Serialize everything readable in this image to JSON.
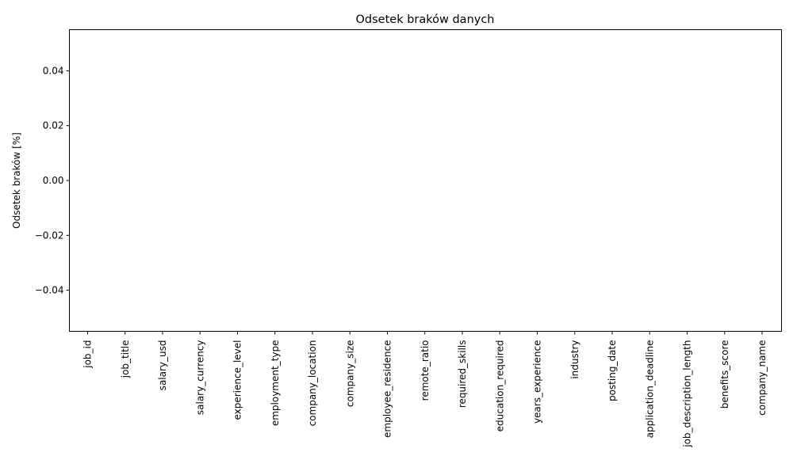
{
  "chart_data": {
    "type": "bar",
    "title": "Odsetek braków danych",
    "xlabel": "",
    "ylabel": "Odsetek braków [%]",
    "categories": [
      "job_id",
      "job_title",
      "salary_usd",
      "salary_currency",
      "experience_level",
      "employment_type",
      "company_location",
      "company_size",
      "employee_residence",
      "remote_ratio",
      "required_skills",
      "education_required",
      "years_experience",
      "industry",
      "posting_date",
      "application_deadline",
      "job_description_length",
      "benefits_score",
      "company_name"
    ],
    "values": [
      0,
      0,
      0,
      0,
      0,
      0,
      0,
      0,
      0,
      0,
      0,
      0,
      0,
      0,
      0,
      0,
      0,
      0,
      0
    ],
    "ylim": [
      -0.055,
      0.055
    ],
    "yticks": [
      -0.04,
      -0.02,
      0.0,
      0.02,
      0.04
    ],
    "ytick_labels": [
      "−0.04",
      "−0.02",
      "0.00",
      "0.02",
      "0.04"
    ],
    "grid": false,
    "bar_color": "#1f77b4"
  }
}
